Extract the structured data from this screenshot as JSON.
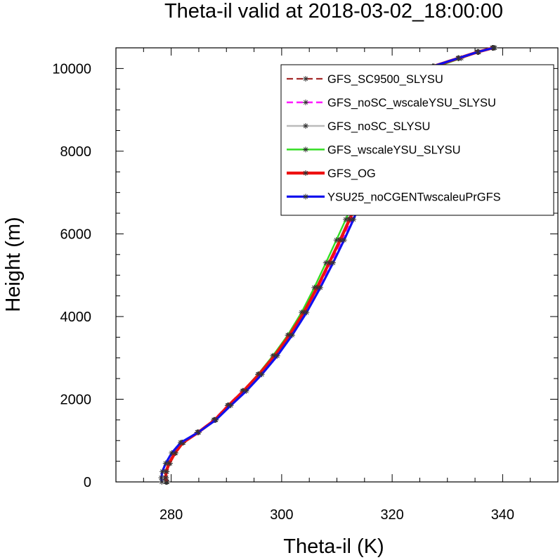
{
  "chart_data": {
    "type": "line",
    "title": "Theta-il valid at 2018-03-02_18:00:00",
    "xlabel": "Theta-il (K)",
    "ylabel": "Height (m)",
    "xlim": [
      270,
      350
    ],
    "ylim": [
      0,
      10500
    ],
    "xticks": [
      280,
      300,
      320,
      340
    ],
    "yticks": [
      0,
      2000,
      4000,
      6000,
      8000,
      10000
    ],
    "xtick_labels": [
      "280",
      "300",
      "320",
      "340"
    ],
    "ytick_labels": [
      "0",
      "2000",
      "4000",
      "6000",
      "8000",
      "10000"
    ],
    "grid": false,
    "legend_position": "top-right",
    "series": [
      {
        "name": "GFS_SC9500_SLYSU",
        "color": "#a52a2a",
        "dash": "dash",
        "width": 2.2,
        "x": [
          279.3,
          279.1,
          279.2,
          279.8,
          280.8,
          282.2,
          285.0,
          288.0,
          290.5,
          293.2,
          296.0,
          298.8,
          301.5,
          304.0,
          306.4,
          308.6,
          310.5,
          312.2,
          313.8,
          315.2,
          316.4,
          317.3,
          317.9,
          318.5,
          320.0,
          323.5,
          327.5,
          332.0,
          335.5,
          338.6
        ],
        "y": [
          0,
          100,
          250,
          450,
          700,
          950,
          1200,
          1500,
          1850,
          2200,
          2600,
          3050,
          3550,
          4100,
          4700,
          5300,
          5850,
          6350,
          6850,
          7300,
          7800,
          8300,
          8800,
          9200,
          9450,
          9750,
          10050,
          10250,
          10400,
          10500
        ]
      },
      {
        "name": "GFS_noSC_wscaleYSU_SLYSU",
        "color": "#ff00ff",
        "dash": "dash",
        "width": 2.2,
        "x": [
          279.0,
          278.9,
          279.0,
          279.5,
          280.5,
          281.9,
          284.7,
          287.7,
          290.2,
          292.9,
          295.8,
          298.7,
          301.5,
          304.1,
          306.6,
          308.9,
          310.9,
          312.6,
          314.2,
          315.6,
          316.8,
          317.6,
          318.1,
          318.6,
          320.1,
          323.6,
          327.6,
          332.1,
          335.6,
          338.4
        ],
        "y": [
          0,
          100,
          250,
          450,
          700,
          950,
          1200,
          1500,
          1850,
          2200,
          2600,
          3050,
          3550,
          4100,
          4700,
          5300,
          5850,
          6350,
          6850,
          7300,
          7800,
          8300,
          8800,
          9200,
          9450,
          9750,
          10050,
          10250,
          10400,
          10500
        ]
      },
      {
        "name": "GFS_noSC_SLYSU",
        "color": "#bbbbbb",
        "dash": "solid",
        "width": 2.4,
        "x": [
          279.2,
          279.0,
          279.1,
          279.6,
          280.6,
          282.0,
          284.8,
          287.8,
          290.3,
          293.0,
          295.8,
          298.6,
          301.3,
          303.9,
          306.3,
          308.5,
          310.4,
          312.1,
          313.7,
          315.1,
          316.3,
          317.2,
          317.8,
          318.4,
          319.9,
          323.3,
          327.3,
          331.9,
          335.4,
          338.2
        ],
        "y": [
          0,
          100,
          250,
          450,
          700,
          950,
          1200,
          1500,
          1850,
          2200,
          2600,
          3050,
          3550,
          4100,
          4700,
          5300,
          5850,
          6350,
          6850,
          7300,
          7800,
          8300,
          8800,
          9200,
          9450,
          9750,
          10050,
          10250,
          10400,
          10500
        ]
      },
      {
        "name": "GFS_wscaleYSU_SLYSU",
        "color": "#33dd22",
        "dash": "solid",
        "width": 2.4,
        "x": [
          279.1,
          278.9,
          279.0,
          279.5,
          280.6,
          282.0,
          284.8,
          287.8,
          290.3,
          293.0,
          295.7,
          298.4,
          301.1,
          303.6,
          305.9,
          308.0,
          309.9,
          311.6,
          313.2,
          314.6,
          315.9,
          316.9,
          317.6,
          318.3,
          320.3,
          324.0,
          328.2,
          332.5,
          335.7,
          338.1
        ],
        "y": [
          0,
          100,
          250,
          450,
          700,
          950,
          1200,
          1500,
          1850,
          2200,
          2600,
          3050,
          3550,
          4100,
          4700,
          5300,
          5850,
          6350,
          6850,
          7300,
          7800,
          8300,
          8800,
          9200,
          9450,
          9750,
          10050,
          10250,
          10400,
          10500
        ]
      },
      {
        "name": "GFS_OG",
        "color": "#ee1111",
        "dash": "solid",
        "width": 4.2,
        "x": [
          279.2,
          279.0,
          279.1,
          279.6,
          280.7,
          282.1,
          284.9,
          287.9,
          290.4,
          293.1,
          295.9,
          298.7,
          301.4,
          304.0,
          306.4,
          308.6,
          310.6,
          312.3,
          313.9,
          315.3,
          316.5,
          317.4,
          318.0,
          318.5,
          320.0,
          323.4,
          327.4,
          332.0,
          335.5,
          338.3
        ],
        "y": [
          0,
          100,
          250,
          450,
          700,
          950,
          1200,
          1500,
          1850,
          2200,
          2600,
          3050,
          3550,
          4100,
          4700,
          5300,
          5850,
          6350,
          6850,
          7300,
          7800,
          8300,
          8800,
          9200,
          9450,
          9750,
          10050,
          10250,
          10400,
          10500
        ]
      },
      {
        "name": "YSU25_noCGENTwscaleuPrGFS",
        "color": "#1111ee",
        "dash": "solid",
        "width": 3.2,
        "x": [
          278.3,
          278.2,
          278.4,
          279.0,
          280.1,
          281.7,
          284.9,
          288.1,
          290.8,
          293.6,
          296.4,
          299.2,
          301.9,
          304.5,
          307.0,
          309.3,
          311.3,
          313.0,
          314.5,
          315.8,
          316.8,
          317.5,
          318.0,
          318.5,
          319.9,
          323.3,
          327.3,
          332.0,
          335.5,
          338.3
        ],
        "y": [
          0,
          100,
          250,
          450,
          700,
          950,
          1200,
          1500,
          1850,
          2200,
          2600,
          3050,
          3550,
          4100,
          4700,
          5300,
          5850,
          6350,
          6850,
          7300,
          7800,
          8300,
          8800,
          9200,
          9450,
          9750,
          10050,
          10250,
          10400,
          10500
        ]
      }
    ]
  }
}
